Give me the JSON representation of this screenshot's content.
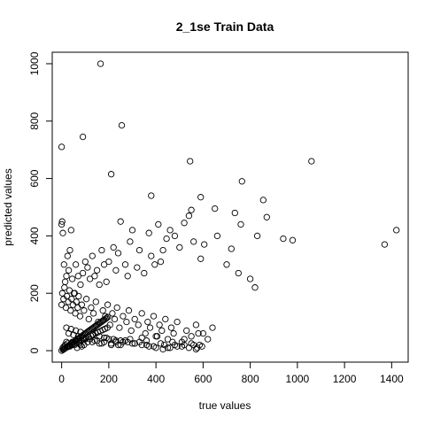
{
  "chart_data": {
    "type": "scatter",
    "title": "2_1se Train Data",
    "xlabel": "true values",
    "ylabel": "predicted values",
    "xlim": [
      -40,
      1470
    ],
    "ylim": [
      -40,
      1040
    ],
    "x_ticks": [
      0,
      200,
      400,
      600,
      800,
      1000,
      1200,
      1400
    ],
    "y_ticks": [
      0,
      200,
      400,
      600,
      800,
      1000
    ],
    "grid": false,
    "legend": "none",
    "marker": "open-circle",
    "colors": {
      "marker": "#000000",
      "frame": "#000000"
    },
    "series": [
      {
        "x": [
          165,
          255,
          90,
          0,
          545,
          210,
          1060,
          765,
          380,
          590,
          550,
          1420,
          1370,
          940,
          980,
          855,
          830,
          870,
          760,
          720,
          735,
          660,
          650,
          605,
          590,
          560,
          540,
          520,
          500,
          480,
          460,
          445,
          430,
          420,
          410,
          395,
          380,
          370,
          350,
          330,
          320,
          300,
          290,
          280,
          270,
          250,
          240,
          230,
          220,
          200,
          190,
          180,
          170,
          160,
          150,
          140,
          130,
          120,
          110,
          100,
          90,
          80,
          70,
          60,
          55,
          45,
          40,
          35,
          30,
          25,
          20,
          15,
          10,
          5,
          2,
          0,
          0,
          3,
          8,
          12,
          18,
          22,
          28,
          33,
          38,
          42,
          48,
          52,
          58,
          62,
          68,
          72,
          78,
          85,
          95,
          105,
          115,
          125,
          135,
          145,
          155,
          175,
          185,
          195,
          205,
          215,
          225,
          235,
          245,
          260,
          275,
          285,
          295,
          310,
          325,
          340,
          355,
          365,
          375,
          390,
          405,
          415,
          425,
          440,
          450,
          465,
          475,
          490,
          510,
          530,
          550,
          570,
          585,
          600,
          620,
          640,
          700,
          750,
          800,
          820,
          580,
          560,
          520,
          470,
          435,
          400,
          360,
          340,
          310,
          290,
          260,
          230,
          210,
          180,
          160,
          130,
          100,
          80,
          60,
          40,
          20,
          10,
          5,
          15,
          25,
          35,
          45,
          55,
          65,
          75,
          85,
          95,
          110,
          140,
          170,
          200,
          230,
          250,
          270,
          300,
          330,
          360,
          390,
          420,
          450,
          480,
          510,
          540,
          570,
          595,
          30,
          50,
          70,
          90,
          120,
          150,
          180,
          210,
          240,
          20,
          40,
          60,
          80,
          100,
          130,
          160,
          190,
          220,
          250,
          280,
          310,
          340,
          370,
          400,
          430,
          460,
          490,
          520,
          550,
          575,
          8,
          14,
          24,
          34,
          44,
          54,
          64,
          74,
          84,
          94,
          104,
          114,
          124,
          134,
          144,
          154,
          164,
          174,
          184,
          194,
          0,
          6,
          11,
          16,
          21,
          26,
          31,
          36,
          41,
          46,
          51,
          56,
          61,
          66,
          71,
          76,
          81,
          86,
          91,
          96,
          101,
          106,
          111,
          116,
          121,
          126,
          131,
          136,
          141,
          146,
          151,
          156,
          161,
          166,
          171,
          176,
          181,
          186,
          191,
          196
        ],
        "y": [
          1000,
          785,
          745,
          710,
          660,
          615,
          660,
          590,
          540,
          535,
          490,
          420,
          370,
          390,
          385,
          525,
          400,
          465,
          440,
          355,
          480,
          400,
          495,
          370,
          320,
          380,
          470,
          445,
          360,
          400,
          420,
          390,
          350,
          310,
          440,
          300,
          330,
          410,
          270,
          350,
          290,
          420,
          380,
          260,
          300,
          450,
          340,
          280,
          360,
          310,
          240,
          300,
          350,
          230,
          280,
          260,
          330,
          250,
          290,
          310,
          270,
          230,
          260,
          300,
          200,
          250,
          420,
          350,
          280,
          330,
          260,
          240,
          300,
          410,
          450,
          440,
          160,
          200,
          180,
          220,
          150,
          190,
          170,
          210,
          140,
          180,
          160,
          200,
          130,
          170,
          150,
          190,
          120,
          160,
          140,
          180,
          110,
          150,
          130,
          170,
          100,
          140,
          120,
          160,
          90,
          130,
          110,
          150,
          80,
          120,
          100,
          140,
          70,
          110,
          90,
          130,
          60,
          100,
          80,
          120,
          50,
          90,
          70,
          110,
          40,
          80,
          60,
          100,
          30,
          70,
          50,
          90,
          20,
          60,
          40,
          80,
          300,
          270,
          250,
          220,
          60,
          20,
          40,
          30,
          20,
          50,
          35,
          45,
          25,
          40,
          30,
          35,
          20,
          45,
          25,
          30,
          40,
          20,
          35,
          25,
          30,
          15,
          10,
          20,
          25,
          15,
          30,
          20,
          10,
          25,
          15,
          20,
          30,
          35,
          25,
          40,
          30,
          20,
          35,
          25,
          30,
          20,
          15,
          25,
          10,
          20,
          15,
          10,
          5,
          15,
          60,
          55,
          50,
          45,
          40,
          35,
          30,
          25,
          20,
          80,
          75,
          70,
          65,
          60,
          55,
          50,
          45,
          40,
          35,
          30,
          25,
          20,
          15,
          10,
          5,
          10,
          15,
          20,
          25,
          10,
          5,
          8,
          12,
          16,
          20,
          24,
          28,
          32,
          36,
          40,
          44,
          48,
          52,
          56,
          60,
          64,
          68,
          72,
          76,
          80,
          0,
          3,
          6,
          9,
          12,
          15,
          18,
          21,
          24,
          27,
          30,
          33,
          36,
          39,
          42,
          45,
          48,
          51,
          54,
          57,
          60,
          63,
          66,
          69,
          72,
          75,
          78,
          81,
          84,
          87,
          90,
          93,
          96,
          99,
          102,
          105,
          108,
          111,
          114,
          117
        ]
      }
    ]
  }
}
